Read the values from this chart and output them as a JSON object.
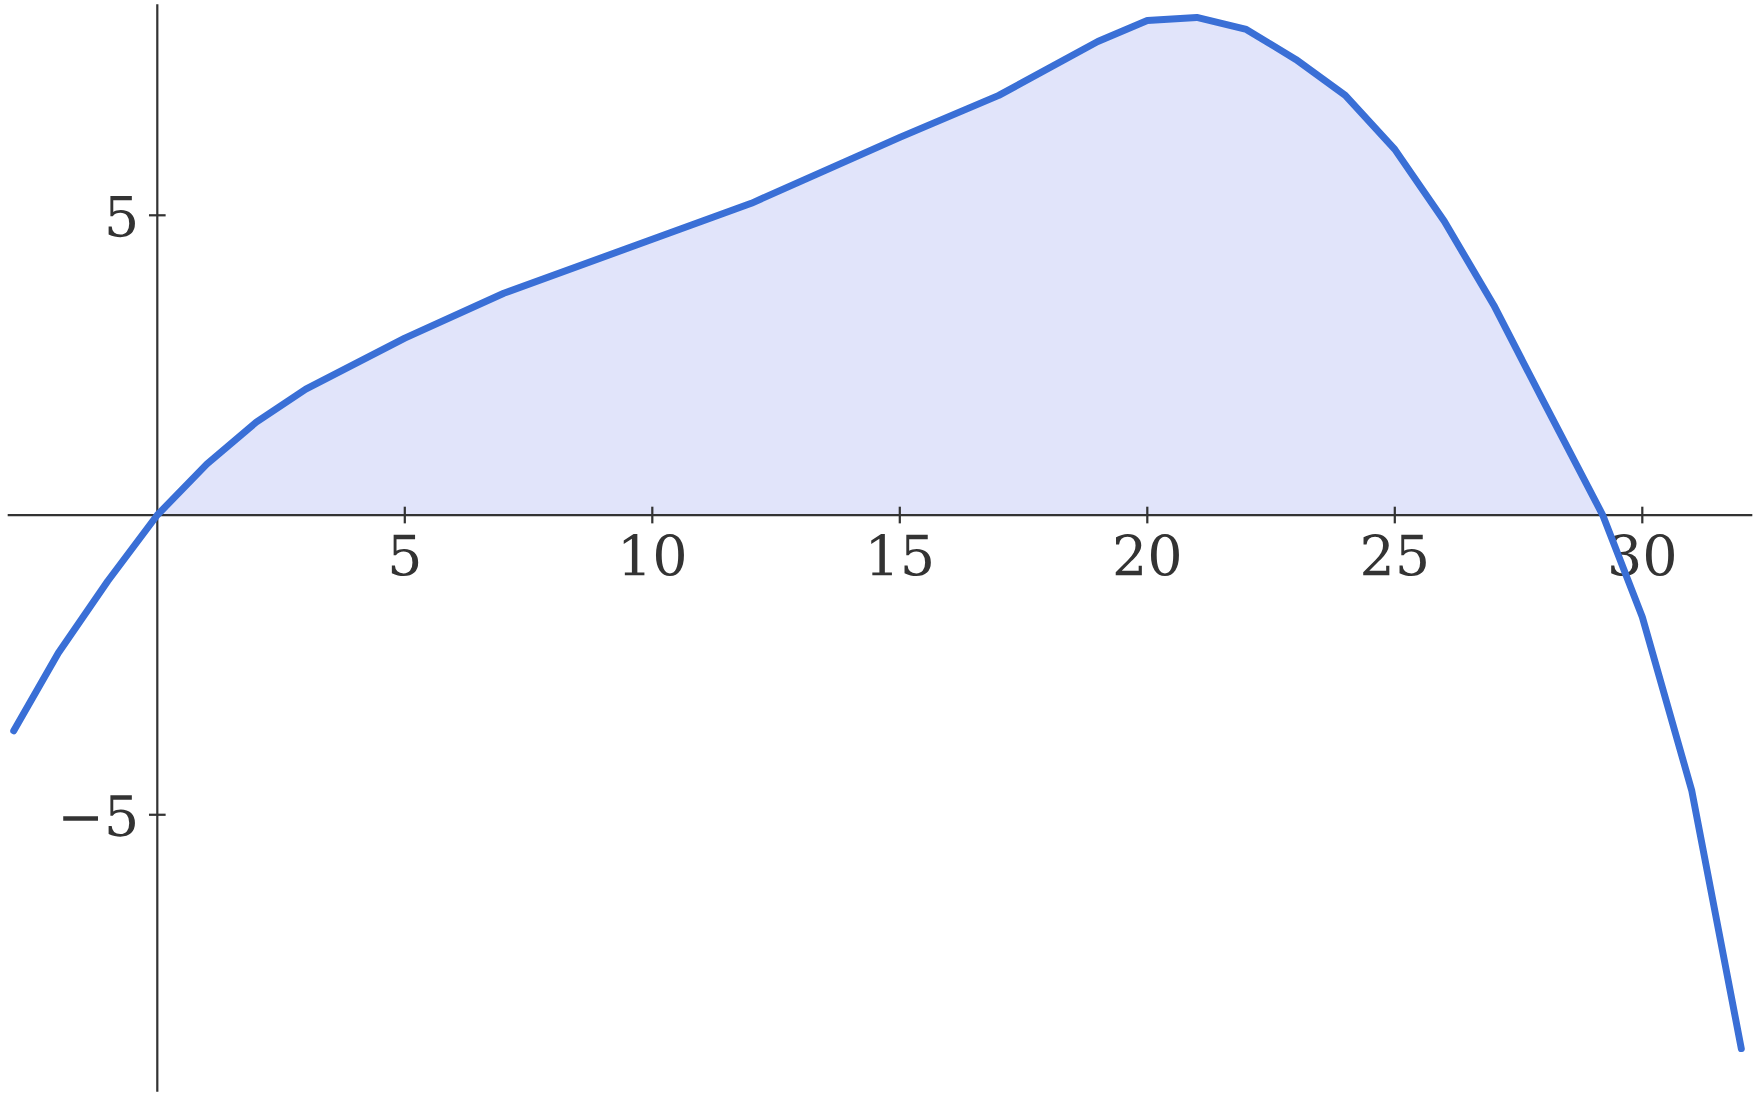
{
  "chart_data": {
    "type": "line",
    "xlim": [
      -3,
      32.2
    ],
    "ylim": [
      -9.6,
      8.5
    ],
    "xticks": [
      5,
      10,
      15,
      20,
      25,
      30
    ],
    "yticks": [
      {
        "value": -5,
        "label": "−5"
      },
      5
    ],
    "grid": false,
    "series": [
      {
        "type": "area",
        "color": "#e1e4fa",
        "x": [
          0,
          1,
          2,
          3,
          5,
          7,
          10,
          12,
          15,
          17,
          19,
          20,
          21,
          22,
          23,
          24,
          25,
          26,
          27,
          28,
          29.2
        ],
        "values": [
          0,
          0.85,
          1.55,
          2.1,
          2.95,
          3.7,
          4.6,
          5.2,
          6.3,
          7.0,
          7.9,
          8.25,
          8.3,
          8.1,
          7.6,
          7.0,
          6.1,
          4.9,
          3.5,
          1.9,
          0
        ]
      },
      {
        "color": "#3a6fd6",
        "x": [
          -2.9,
          -2,
          -1,
          0,
          1,
          2,
          3,
          5,
          7,
          10,
          12,
          15,
          17,
          19,
          20,
          21,
          22,
          23,
          24,
          25,
          26,
          27,
          28,
          29.2,
          30,
          31,
          32
        ],
        "values": [
          -3.6,
          -2.3,
          -1.1,
          0,
          0.85,
          1.55,
          2.1,
          2.95,
          3.7,
          4.6,
          5.2,
          6.3,
          7.0,
          7.9,
          8.25,
          8.3,
          8.1,
          7.6,
          7.0,
          6.1,
          4.9,
          3.5,
          1.9,
          0,
          -1.7,
          -4.6,
          -8.9
        ]
      }
    ]
  }
}
